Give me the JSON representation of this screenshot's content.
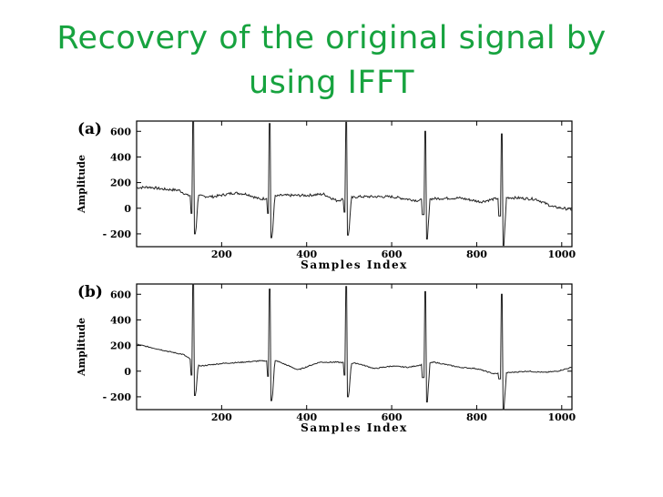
{
  "slide": {
    "title_line1": "Recovery of the original signal by",
    "title_line2": "using IFFT",
    "title_color": "#17a33f"
  },
  "chart_data": [
    {
      "type": "line",
      "panel_label": "(a)",
      "xlabel": "Samples Index",
      "ylabel": "Amplitude",
      "xlim": [
        0,
        1024
      ],
      "ylim": [
        -300,
        680
      ],
      "xticks": [
        200,
        400,
        600,
        800,
        1000
      ],
      "yticks": [
        600,
        400,
        200,
        0,
        -200
      ],
      "line_color": "#222222",
      "baseline": [
        [
          0,
          160
        ],
        [
          30,
          165
        ],
        [
          60,
          150
        ],
        [
          100,
          140
        ],
        [
          120,
          100
        ],
        [
          180,
          90
        ],
        [
          230,
          120
        ],
        [
          260,
          110
        ],
        [
          290,
          70
        ],
        [
          340,
          100
        ],
        [
          400,
          100
        ],
        [
          440,
          110
        ],
        [
          470,
          60
        ],
        [
          520,
          90
        ],
        [
          600,
          90
        ],
        [
          660,
          60
        ],
        [
          700,
          75
        ],
        [
          760,
          80
        ],
        [
          810,
          50
        ],
        [
          860,
          85
        ],
        [
          900,
          80
        ],
        [
          940,
          70
        ],
        [
          980,
          10
        ],
        [
          1024,
          -10
        ]
      ],
      "beats": [
        {
          "x": 135,
          "r": 680,
          "s": -200,
          "q": -40
        },
        {
          "x": 315,
          "r": 660,
          "s": -230,
          "q": -40
        },
        {
          "x": 495,
          "r": 670,
          "s": -210,
          "q": -30
        },
        {
          "x": 680,
          "r": 600,
          "s": -240,
          "q": -50
        },
        {
          "x": 860,
          "r": 580,
          "s": -290,
          "q": -60
        }
      ],
      "noise": 10
    },
    {
      "type": "line",
      "panel_label": "(b)",
      "xlabel": "Samples Index",
      "ylabel": "Amplitude",
      "xlim": [
        0,
        1024
      ],
      "ylim": [
        -300,
        680
      ],
      "xticks": [
        200,
        400,
        600,
        800,
        1000
      ],
      "yticks": [
        600,
        400,
        200,
        0,
        -200
      ],
      "line_color": "#222222",
      "baseline": [
        [
          0,
          210
        ],
        [
          40,
          180
        ],
        [
          80,
          150
        ],
        [
          110,
          130
        ],
        [
          150,
          40
        ],
        [
          200,
          60
        ],
        [
          250,
          70
        ],
        [
          290,
          80
        ],
        [
          330,
          80
        ],
        [
          380,
          10
        ],
        [
          430,
          70
        ],
        [
          470,
          70
        ],
        [
          520,
          60
        ],
        [
          560,
          20
        ],
        [
          600,
          40
        ],
        [
          640,
          30
        ],
        [
          700,
          70
        ],
        [
          760,
          30
        ],
        [
          800,
          20
        ],
        [
          840,
          -20
        ],
        [
          880,
          -10
        ],
        [
          920,
          0
        ],
        [
          960,
          -10
        ],
        [
          990,
          0
        ],
        [
          1024,
          30
        ]
      ],
      "beats": [
        {
          "x": 135,
          "r": 680,
          "s": -190,
          "q": -30
        },
        {
          "x": 315,
          "r": 640,
          "s": -230,
          "q": -40
        },
        {
          "x": 495,
          "r": 660,
          "s": -200,
          "q": -30
        },
        {
          "x": 680,
          "r": 620,
          "s": -240,
          "q": -50
        },
        {
          "x": 860,
          "r": 600,
          "s": -300,
          "q": -60
        }
      ],
      "noise": 4
    }
  ]
}
